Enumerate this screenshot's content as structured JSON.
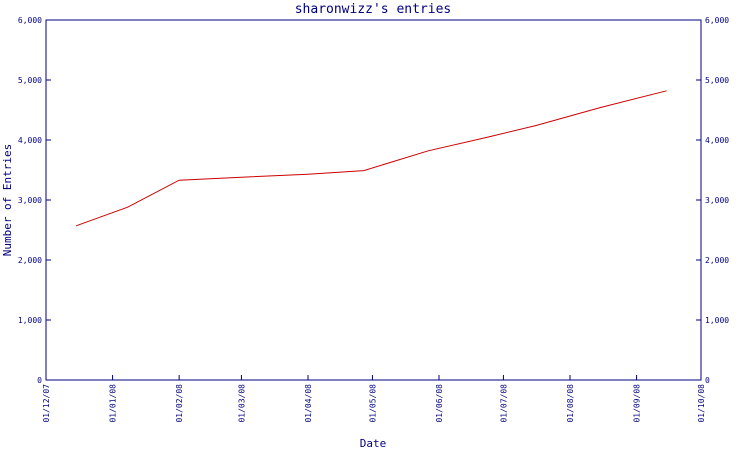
{
  "chart_data": {
    "type": "line",
    "title": "sharonwizz's entries",
    "xlabel": "Date",
    "ylabel": "Number of Entries",
    "ylim": [
      0,
      6000
    ],
    "y_ticks": [
      0,
      1000,
      2000,
      3000,
      4000,
      5000,
      6000
    ],
    "y_tick_labels": [
      "0",
      "1,000",
      "2,000",
      "3,000",
      "4,000",
      "5,000",
      "6,000"
    ],
    "x_range": [
      "2007-12-01",
      "2008-10-01"
    ],
    "x_ticks": [
      "2007-12-01",
      "2008-01-01",
      "2008-02-01",
      "2008-03-01",
      "2008-04-01",
      "2008-05-01",
      "2008-06-01",
      "2008-07-01",
      "2008-08-01",
      "2008-09-01",
      "2008-10-01"
    ],
    "x_tick_labels": [
      "01/12/07",
      "01/01/08",
      "01/02/08",
      "01/03/08",
      "01/04/08",
      "01/05/08",
      "01/06/08",
      "01/07/08",
      "01/08/08",
      "01/09/08",
      "01/10/08"
    ],
    "right_axis": true,
    "grid": false,
    "series": [
      {
        "color": "#cc0000",
        "x": [
          "2007-12-15",
          "2008-01-08",
          "2008-02-01",
          "2008-03-01",
          "2008-04-01",
          "2008-04-27",
          "2008-05-27",
          "2008-06-24",
          "2008-07-16",
          "2008-08-15",
          "2008-09-15"
        ],
        "y": [
          2570,
          2880,
          3330,
          3380,
          3430,
          3490,
          3820,
          4050,
          4240,
          4540,
          4820
        ]
      }
    ]
  }
}
